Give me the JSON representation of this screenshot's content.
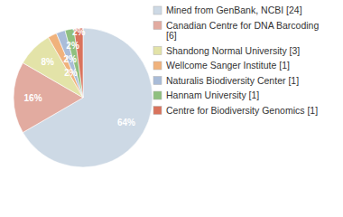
{
  "chart_data": {
    "type": "pie",
    "categories": [
      "Mined from GenBank, NCBI [24]",
      "Canadian Centre for DNA Barcoding [6]",
      "Shandong Normal University [3]",
      "Wellcome Sanger Institute [1]",
      "Naturalis Biodiversity Center [1]",
      "Hannam University [1]",
      "Centre for Biodiversity Genomics [1]"
    ],
    "values": [
      64,
      16,
      8,
      2,
      2,
      2,
      2
    ],
    "value_labels": [
      "64%",
      "16%",
      "8%",
      "2%",
      "2%",
      "2%",
      "2%"
    ],
    "colors": [
      "#cdd9e5",
      "#e2aba0",
      "#e3e3a8",
      "#f0b27c",
      "#a9bcd8",
      "#8fc07f",
      "#d9735d"
    ],
    "data_labels": true,
    "legend": "top-right"
  }
}
